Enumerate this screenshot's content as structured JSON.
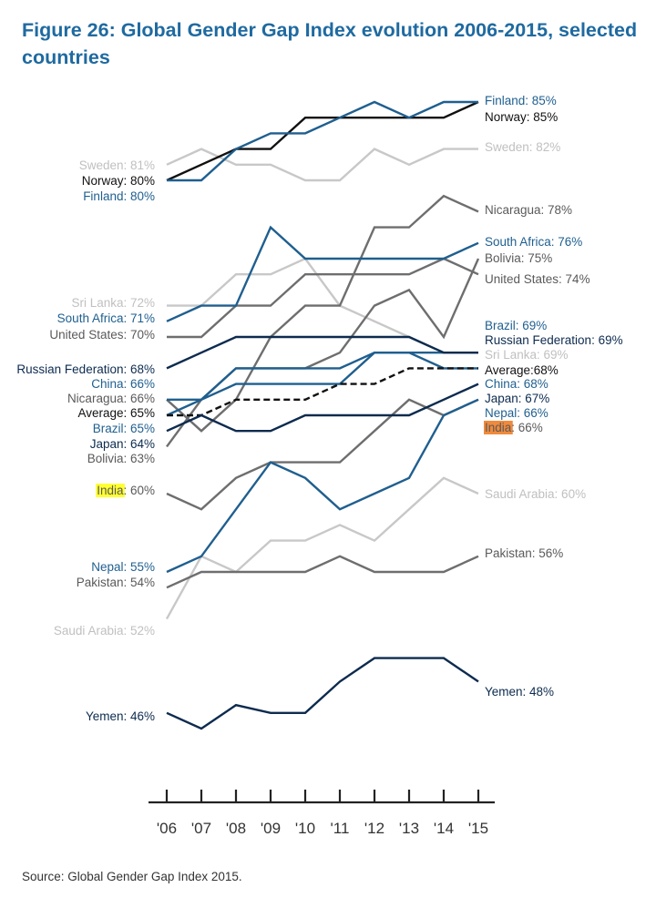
{
  "title": "Figure 26: Global Gender Gap Index evolution 2006-2015, selected countries",
  "source": "Source: Global Gender Gap Index 2015.",
  "colors": {
    "dark_blue": "#0d2b4f",
    "blue": "#1f5f8f",
    "gray": "#6e6e6e",
    "light_gray": "#c8c8c8",
    "average": "#111111",
    "highlight_yellow": "#ffff33",
    "highlight_orange": "#f08a3c"
  },
  "chart_data": {
    "type": "line",
    "x": [
      "'06",
      "'07",
      "'08",
      "'09",
      "'10",
      "'11",
      "'12",
      "'13",
      "'14",
      "'15"
    ],
    "ylim": [
      45,
      86
    ],
    "grid": false,
    "series": [
      {
        "name": "Sweden",
        "style": "light_gray",
        "values": [
          81,
          82,
          81,
          81,
          80,
          80,
          82,
          81,
          82,
          82
        ],
        "left_label": "Sweden: 81%",
        "right_label": "Sweden: 82%"
      },
      {
        "name": "Norway",
        "style": "average",
        "values": [
          80,
          81,
          82,
          82,
          84,
          84,
          84,
          84,
          84,
          85
        ],
        "left_label": "Norway: 80%",
        "right_label": "Norway: 85%"
      },
      {
        "name": "Finland",
        "style": "blue",
        "values": [
          80,
          80,
          82,
          83,
          83,
          84,
          85,
          84,
          85,
          85
        ],
        "left_label": "Finland: 80%",
        "right_label": "Finland: 85%"
      },
      {
        "name": "Nicaragua",
        "style": "gray",
        "values": [
          66,
          64,
          66,
          70,
          72,
          72,
          77,
          77,
          79,
          78
        ],
        "left_label": "Nicaragua: 66%",
        "right_label": "Nicaragua: 78%"
      },
      {
        "name": "South Africa",
        "style": "blue",
        "values": [
          71,
          72,
          72,
          77,
          75,
          75,
          75,
          75,
          75,
          76
        ],
        "left_label": "South Africa: 71%",
        "right_label": "South Africa: 76%"
      },
      {
        "name": "Bolivia",
        "style": "gray",
        "values": [
          63,
          66,
          68,
          68,
          68,
          69,
          72,
          73,
          70,
          75
        ],
        "left_label": "Bolivia: 63%",
        "right_label": "Bolivia: 75%"
      },
      {
        "name": "United States",
        "style": "gray",
        "values": [
          70,
          70,
          72,
          72,
          74,
          74,
          74,
          74,
          75,
          74
        ],
        "left_label": "United States: 70%",
        "right_label": "United States: 74%"
      },
      {
        "name": "Sri Lanka",
        "style": "light_gray",
        "values": [
          72,
          72,
          74,
          74,
          75,
          72,
          71,
          70,
          69,
          69
        ],
        "left_label": "Sri Lanka: 72%",
        "right_label": "Sri Lanka: 69%"
      },
      {
        "name": "Brazil",
        "style": "blue",
        "values": [
          65,
          66,
          68,
          68,
          68,
          68,
          69,
          69,
          69,
          69
        ],
        "left_label": "Brazil: 65%",
        "right_label": "Brazil: 69%"
      },
      {
        "name": "Russian Federation",
        "style": "dark_blue",
        "values": [
          68,
          69,
          70,
          70,
          70,
          70,
          70,
          70,
          69,
          69
        ],
        "left_label": "Russian Federation: 68%",
        "right_label": "Russian Federation: 69%"
      },
      {
        "name": "China",
        "style": "blue",
        "values": [
          66,
          66,
          67,
          67,
          67,
          67,
          69,
          69,
          68,
          68
        ],
        "left_label": "China: 66%",
        "right_label": "China: 68%"
      },
      {
        "name": "Average",
        "style": "average",
        "dashed": true,
        "values": [
          65,
          65,
          66,
          66,
          66,
          67,
          67,
          68,
          68,
          68
        ],
        "left_label": "Average: 65%",
        "right_label": "Average:68%"
      },
      {
        "name": "Japan",
        "style": "dark_blue",
        "values": [
          64,
          65,
          64,
          64,
          65,
          65,
          65,
          65,
          66,
          67
        ],
        "left_label": "Japan: 64%",
        "right_label": "Japan: 67%"
      },
      {
        "name": "Nepal",
        "style": "blue",
        "values": [
          55,
          56,
          59,
          62,
          61,
          59,
          60,
          61,
          65,
          66
        ],
        "left_label": "Nepal: 55%",
        "right_label": "Nepal: 66%"
      },
      {
        "name": "India",
        "style": "gray",
        "values": [
          60,
          59,
          61,
          62,
          62,
          62,
          64,
          66,
          65,
          66
        ],
        "left_label": "India: 60%",
        "right_label": "India: 66%",
        "left_highlight": "highlight_yellow",
        "right_highlight": "highlight_orange"
      },
      {
        "name": "Saudi Arabia",
        "style": "light_gray",
        "values": [
          52,
          56,
          55,
          57,
          57,
          58,
          57,
          59,
          61,
          60
        ],
        "left_label": "Saudi Arabia: 52%",
        "right_label": "Saudi Arabia: 60%"
      },
      {
        "name": "Pakistan",
        "style": "gray",
        "values": [
          54,
          55,
          55,
          55,
          55,
          56,
          55,
          55,
          55,
          56
        ],
        "left_label": "Pakistan: 54%",
        "right_label": "Pakistan: 56%"
      },
      {
        "name": "Yemen",
        "style": "dark_blue",
        "values": [
          46,
          45,
          46.5,
          46,
          46,
          48,
          49.5,
          49.5,
          49.5,
          48
        ],
        "left_label": "Yemen: 46%",
        "right_label": "Yemen: 48%"
      }
    ]
  }
}
